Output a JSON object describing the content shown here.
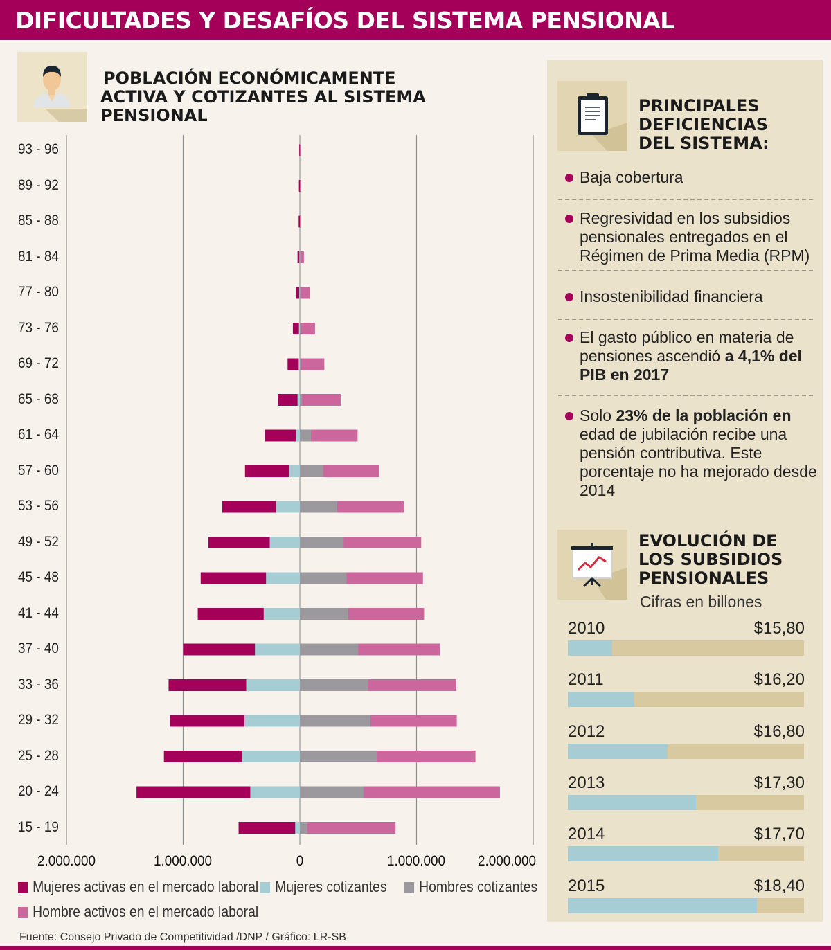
{
  "header": {
    "title": "DIFICULTADES Y DESAFÍOS DEL SISTEMA PENSIONAL"
  },
  "left": {
    "title_lines": [
      "POBLACIÓN ECONÓMICAMENTE",
      "ACTIVA Y COTIZANTES AL SISTEMA",
      "PENSIONAL"
    ]
  },
  "chart_data": {
    "type": "bar",
    "title": "POBLACIÓN ECONÓMICAMENTE ACTIVA Y COTIZANTES AL SISTEMA PENSIONAL",
    "orientation": "horizontal-pyramid",
    "categories": [
      "93 - 96",
      "89 - 92",
      "85 - 88",
      "81 - 84",
      "77 - 80",
      "73 - 76",
      "69 - 72",
      "65 - 68",
      "61 - 64",
      "57 - 60",
      "53 - 56",
      "49 - 52",
      "45 - 48",
      "41 - 44",
      "37 - 40",
      "33 - 36",
      "29 - 32",
      "25 - 28",
      "20 - 24",
      "15 - 19"
    ],
    "series": [
      {
        "name": "Mujeres activas en el mercado laboral",
        "color": "#a4005a",
        "side": "left",
        "values": [
          5000,
          8000,
          10000,
          20000,
          35000,
          60000,
          105000,
          190000,
          300000,
          470000,
          665000,
          785000,
          850000,
          875000,
          1000000,
          1125000,
          1115000,
          1165000,
          1400000,
          525000
        ]
      },
      {
        "name": "Mujeres cotizantes",
        "color": "#a7cdd4",
        "side": "left",
        "values": [
          0,
          0,
          2000,
          4000,
          5000,
          8000,
          10000,
          20000,
          30000,
          95000,
          205000,
          258000,
          290000,
          310000,
          385000,
          460000,
          475000,
          495000,
          425000,
          40000
        ]
      },
      {
        "name": "Hombres cotizantes",
        "color": "#9b999e",
        "side": "right",
        "values": [
          0,
          0,
          3000,
          5000,
          5000,
          8000,
          10000,
          20000,
          95000,
          200000,
          320000,
          375000,
          400000,
          415000,
          500000,
          585000,
          605000,
          660000,
          545000,
          65000
        ]
      },
      {
        "name": "Hombre activos en el mercado laboral",
        "color": "#cc679e",
        "side": "right",
        "values": [
          4000,
          4000,
          10000,
          35000,
          85000,
          130000,
          210000,
          350000,
          495000,
          680000,
          890000,
          1040000,
          1055000,
          1065000,
          1200000,
          1340000,
          1345000,
          1505000,
          1715000,
          820000
        ]
      }
    ],
    "xlim": [
      -2000000,
      2000000
    ],
    "x_ticks": [
      "2.000.000",
      "1.000.000",
      "0",
      "1.000.000",
      "2.000.000"
    ],
    "legend": "bottom"
  },
  "right": {
    "deficiencias_title_lines": [
      "PRINCIPALES",
      "DEFICIENCIAS",
      "DEL SISTEMA:"
    ],
    "bullets": [
      {
        "text": "Baja cobertura"
      },
      {
        "text": "Regresividad en los subsidios pensionales entregados en el Régimen de Prima Media (RPM)"
      },
      {
        "text": "Insostenibilidad financiera"
      },
      {
        "pre": "El gasto público en materia de pensiones ascendió ",
        "bold": "a 4,1% del PIB en 2017",
        "post": ""
      },
      {
        "pre": "Solo ",
        "bold": "23% de la población en",
        "post": " edad de jubilación recibe una pensión contributiva. Este porcentaje no ha mejorado desde 2014"
      }
    ],
    "subsidios_title_lines": [
      "EVOLUCIÓN DE",
      "LOS SUBSIDIOS",
      "PENSIONALES"
    ],
    "subsidios_caption": "Cifras en billones",
    "subsidios": [
      {
        "year": "2010",
        "value_label": "$15,80",
        "value": 15.8
      },
      {
        "year": "2011",
        "value_label": "$16,20",
        "value": 16.2
      },
      {
        "year": "2012",
        "value_label": "$16,80",
        "value": 16.8
      },
      {
        "year": "2013",
        "value_label": "$17,30",
        "value": 17.3
      },
      {
        "year": "2014",
        "value_label": "$17,70",
        "value": 17.7
      },
      {
        "year": "2015",
        "value_label": "$18,40",
        "value": 18.4
      }
    ]
  },
  "source": "Fuente: Consejo Privado de Competitividad /DNP / Gráfico: LR-SB",
  "colors": {
    "brand": "#a4005a",
    "panel": "#ebe2cc",
    "background": "#f7f3ec"
  }
}
